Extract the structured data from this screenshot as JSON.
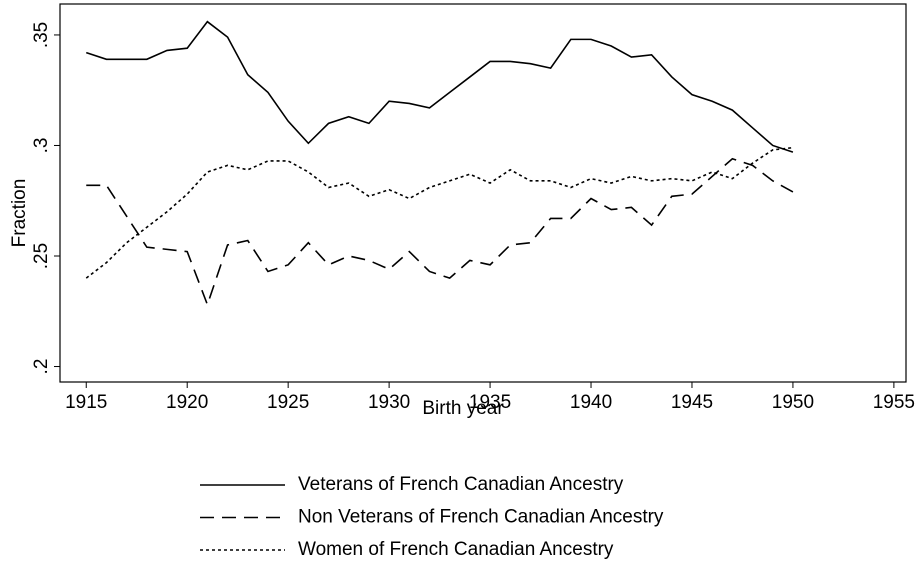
{
  "chart_data": {
    "type": "line",
    "xlabel": "Birth year",
    "ylabel": "Fraction",
    "x": [
      1915,
      1916,
      1917,
      1918,
      1919,
      1920,
      1921,
      1922,
      1923,
      1924,
      1925,
      1926,
      1927,
      1928,
      1929,
      1930,
      1931,
      1932,
      1933,
      1934,
      1935,
      1936,
      1937,
      1938,
      1939,
      1940,
      1941,
      1942,
      1943,
      1944,
      1945,
      1946,
      1947,
      1948,
      1949,
      1950
    ],
    "series": [
      {
        "name": "Veterans of French Canadian Ancestry",
        "color": "#000000",
        "dash": "solid",
        "values": [
          0.342,
          0.339,
          0.339,
          0.339,
          0.343,
          0.344,
          0.356,
          0.349,
          0.332,
          0.324,
          0.311,
          0.301,
          0.31,
          0.313,
          0.31,
          0.32,
          0.319,
          0.317,
          0.324,
          0.331,
          0.338,
          0.338,
          0.337,
          0.335,
          0.348,
          0.348,
          0.345,
          0.34,
          0.341,
          0.331,
          0.323,
          0.32,
          0.316,
          0.308,
          0.3,
          0.297
        ]
      },
      {
        "name": "Non Veterans of French Canadian Ancestry",
        "color": "#000000",
        "dash": "dashed",
        "values": [
          0.282,
          0.282,
          0.268,
          0.254,
          0.253,
          0.252,
          0.228,
          0.255,
          0.257,
          0.243,
          0.246,
          0.256,
          0.246,
          0.25,
          0.248,
          0.244,
          0.252,
          0.243,
          0.24,
          0.248,
          0.246,
          0.255,
          0.256,
          0.267,
          0.267,
          0.276,
          0.271,
          0.272,
          0.264,
          0.277,
          0.278,
          0.286,
          0.294,
          0.291,
          0.284,
          0.279
        ]
      },
      {
        "name": "Women of French Canadian Ancestry",
        "color": "#000000",
        "dash": "dotted",
        "values": [
          0.24,
          0.247,
          0.256,
          0.263,
          0.27,
          0.278,
          0.288,
          0.291,
          0.289,
          0.293,
          0.293,
          0.288,
          0.281,
          0.283,
          0.277,
          0.28,
          0.276,
          0.281,
          0.284,
          0.287,
          0.283,
          0.289,
          0.284,
          0.284,
          0.281,
          0.285,
          0.283,
          0.286,
          0.284,
          0.285,
          0.284,
          0.288,
          0.285,
          0.292,
          0.298,
          0.299
        ]
      }
    ],
    "xlim": [
      1913.7,
      1955.6
    ],
    "xticks": [
      1915,
      1920,
      1925,
      1930,
      1935,
      1940,
      1945,
      1950,
      1955
    ],
    "ylim": [
      0.193,
      0.364
    ],
    "yticks": [
      {
        "value": 0.2,
        "label": ".2"
      },
      {
        "value": 0.25,
        "label": ".25"
      },
      {
        "value": 0.3,
        "label": ".3"
      },
      {
        "value": 0.35,
        "label": ".35"
      }
    ],
    "legend": "bottom"
  }
}
